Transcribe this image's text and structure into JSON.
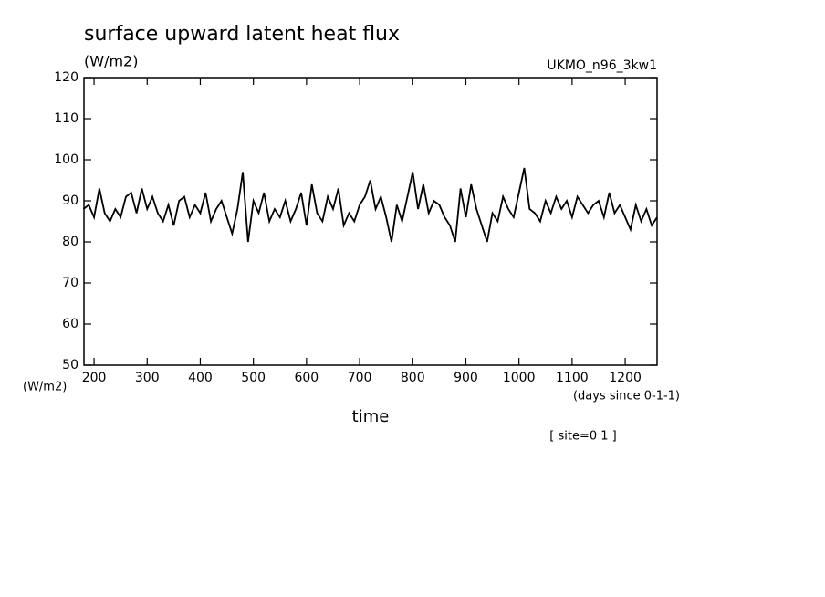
{
  "chart_data": {
    "type": "line",
    "title": "surface upward latent heat flux",
    "units_label": "(W/m2)",
    "dataset_label": "UKMO_n96_3kw1",
    "y_axis_label": "(W/m2)",
    "x_units_label": "(days since 0-1-1)",
    "x_axis_label": "time",
    "site_label": "[ site=0 1 ]",
    "x": [
      180,
      190,
      200,
      210,
      220,
      230,
      240,
      250,
      260,
      270,
      280,
      290,
      300,
      310,
      320,
      330,
      340,
      350,
      360,
      370,
      380,
      390,
      400,
      410,
      420,
      430,
      440,
      450,
      460,
      470,
      480,
      490,
      500,
      510,
      520,
      530,
      540,
      550,
      560,
      570,
      580,
      590,
      600,
      610,
      620,
      630,
      640,
      650,
      660,
      670,
      680,
      690,
      700,
      710,
      720,
      730,
      740,
      750,
      760,
      770,
      780,
      790,
      800,
      810,
      820,
      830,
      840,
      850,
      860,
      870,
      880,
      890,
      900,
      910,
      920,
      930,
      940,
      950,
      960,
      970,
      980,
      990,
      1000,
      1010,
      1020,
      1030,
      1040,
      1050,
      1060,
      1070,
      1080,
      1090,
      1100,
      1110,
      1120,
      1130,
      1140,
      1150,
      1160,
      1170,
      1180,
      1190,
      1200,
      1210,
      1220,
      1230,
      1240,
      1250,
      1260
    ],
    "series": [
      {
        "color": "#000000",
        "values": [
          88,
          89,
          86,
          93,
          87,
          85,
          88,
          86,
          91,
          92,
          87,
          93,
          88,
          91,
          87,
          85,
          89,
          84,
          90,
          91,
          86,
          89,
          87,
          92,
          85,
          88,
          90,
          86,
          82,
          88,
          97,
          80,
          90,
          87,
          92,
          85,
          88,
          86,
          90,
          85,
          88,
          92,
          84,
          94,
          87,
          85,
          91,
          88,
          93,
          84,
          87,
          85,
          89,
          91,
          95,
          88,
          91,
          86,
          80,
          89,
          85,
          91,
          97,
          88,
          94,
          87,
          90,
          89,
          86,
          84,
          80,
          93,
          86,
          94,
          88,
          84,
          80,
          87,
          85,
          91,
          88,
          86,
          92,
          98,
          88,
          87,
          85,
          90,
          87,
          91,
          88,
          90,
          86,
          91,
          89,
          87,
          89,
          90,
          86,
          92,
          87,
          89,
          86,
          83,
          89,
          85,
          88,
          84,
          86
        ]
      }
    ],
    "xlim": [
      181,
      1260
    ],
    "ylim": [
      50,
      120
    ],
    "xticks": [
      200,
      300,
      400,
      500,
      600,
      700,
      800,
      900,
      1000,
      1100,
      1200
    ],
    "yticks": [
      50,
      60,
      70,
      80,
      90,
      100,
      110,
      120
    ]
  }
}
